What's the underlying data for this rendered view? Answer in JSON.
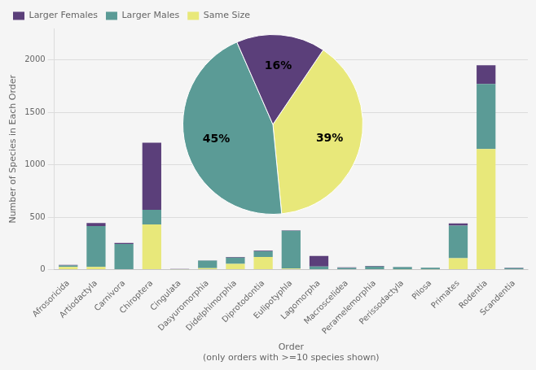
{
  "chart_data": [
    {
      "type": "bar",
      "stacked": true,
      "categories": [
        "Afrosoricida",
        "Artiodactyla",
        "Carnivora",
        "Chiroptera",
        "Cingulata",
        "Dasyuromorphia",
        "Didelphimorphia",
        "Diprotodontia",
        "Eulipotyphla",
        "Lagomorpha",
        "Macroscelidea",
        "Peramelemorphia",
        "Perissodactyla",
        "Pilosa",
        "Primates",
        "Rodentia",
        "Scandentia"
      ],
      "series": [
        {
          "name": "Same Size",
          "color": "#e8e87a",
          "values": [
            25,
            25,
            5,
            430,
            2,
            15,
            55,
            120,
            10,
            5,
            5,
            5,
            3,
            3,
            110,
            1150,
            5
          ]
        },
        {
          "name": "Larger Males",
          "color": "#5b9b96",
          "values": [
            15,
            390,
            240,
            140,
            2,
            70,
            60,
            55,
            360,
            25,
            12,
            25,
            20,
            15,
            310,
            620,
            10
          ]
        },
        {
          "name": "Larger Females",
          "color": "#5b3f7a",
          "values": [
            5,
            30,
            10,
            640,
            2,
            2,
            5,
            5,
            5,
            100,
            5,
            5,
            2,
            2,
            20,
            180,
            3
          ]
        }
      ],
      "ylabel": "Number of Species in Each Order",
      "xlabel": [
        "Order",
        "(only orders with >=10 species shown)"
      ],
      "ylim": [
        0,
        2300
      ],
      "yticks": [
        0,
        500,
        1000,
        1500,
        2000
      ],
      "grid": true,
      "legend": "upper left"
    },
    {
      "type": "pie",
      "values": [
        39,
        45,
        16
      ],
      "value_labels": [
        "39%",
        "45%",
        "16%"
      ],
      "colors": [
        "#e8e87a",
        "#5b9b96",
        "#5b3f7a"
      ],
      "data_labels": true
    }
  ]
}
